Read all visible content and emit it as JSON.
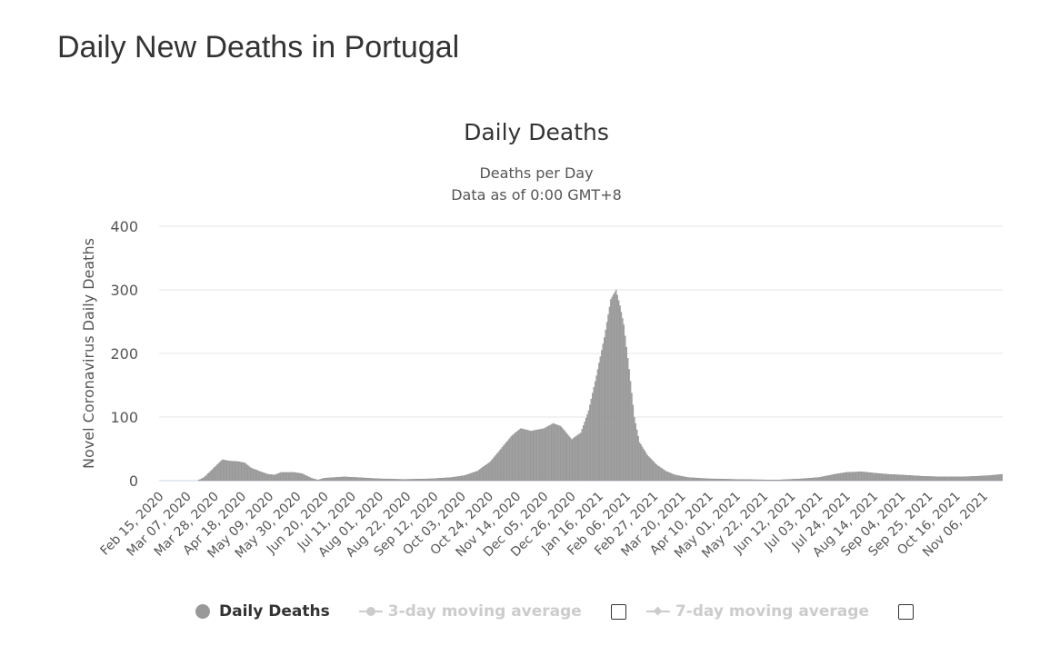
{
  "page_title": "Daily New Deaths in Portugal",
  "legend": {
    "daily_deaths": "Daily Deaths",
    "ma3": "3-day moving average",
    "ma7": "7-day moving average"
  },
  "colors": {
    "bar": "#a6a6a6",
    "bar_stroke": "#7f7f7f",
    "grid": "#e6e6e6",
    "baseline": "#ccd6eb"
  },
  "chart_data": {
    "type": "bar",
    "title": "Daily Deaths",
    "subtitle_lines": [
      "Deaths per Day",
      "Data as of 0:00 GMT+8"
    ],
    "xlabel": "",
    "ylabel": "Novel Coronavirus Daily Deaths",
    "ylim": [
      0,
      400
    ],
    "yticks": [
      0,
      100,
      200,
      300,
      400
    ],
    "grid": true,
    "x_range": [
      "2020-02-15",
      "2021-11-20"
    ],
    "xtick_labels": [
      "Feb 15, 2020",
      "Mar 07, 2020",
      "Mar 28, 2020",
      "Apr 18, 2020",
      "May 09, 2020",
      "May 30, 2020",
      "Jun 20, 2020",
      "Jul 11, 2020",
      "Aug 01, 2020",
      "Aug 22, 2020",
      "Sep 12, 2020",
      "Oct 03, 2020",
      "Oct 24, 2020",
      "Nov 14, 2020",
      "Dec 05, 2020",
      "Dec 26, 2020",
      "Jan 16, 2021",
      "Feb 06, 2021",
      "Feb 27, 2021",
      "Mar 20, 2021",
      "Apr 10, 2021",
      "May 01, 2021",
      "May 22, 2021",
      "Jun 12, 2021",
      "Jul 03, 2021",
      "Jul 24, 2021",
      "Aug 14, 2021",
      "Sep 04, 2021",
      "Sep 25, 2021",
      "Oct 16, 2021",
      "Nov 06, 2021"
    ],
    "series": [
      {
        "name": "Daily Deaths",
        "points": [
          [
            "2020-03-15",
            0
          ],
          [
            "2020-03-20",
            5
          ],
          [
            "2020-03-25",
            15
          ],
          [
            "2020-03-30",
            25
          ],
          [
            "2020-04-03",
            33
          ],
          [
            "2020-04-08",
            31
          ],
          [
            "2020-04-15",
            30
          ],
          [
            "2020-04-20",
            28
          ],
          [
            "2020-04-25",
            20
          ],
          [
            "2020-05-01",
            15
          ],
          [
            "2020-05-08",
            10
          ],
          [
            "2020-05-13",
            9
          ],
          [
            "2020-05-18",
            13
          ],
          [
            "2020-05-28",
            13
          ],
          [
            "2020-06-03",
            11
          ],
          [
            "2020-06-10",
            4
          ],
          [
            "2020-06-15",
            1
          ],
          [
            "2020-06-20",
            4
          ],
          [
            "2020-07-05",
            6
          ],
          [
            "2020-07-15",
            5
          ],
          [
            "2020-08-01",
            3
          ],
          [
            "2020-08-20",
            2
          ],
          [
            "2020-09-10",
            3
          ],
          [
            "2020-09-25",
            5
          ],
          [
            "2020-10-05",
            8
          ],
          [
            "2020-10-15",
            15
          ],
          [
            "2020-10-25",
            30
          ],
          [
            "2020-11-02",
            50
          ],
          [
            "2020-11-10",
            70
          ],
          [
            "2020-11-17",
            82
          ],
          [
            "2020-11-25",
            78
          ],
          [
            "2020-12-05",
            82
          ],
          [
            "2020-12-12",
            90
          ],
          [
            "2020-12-18",
            85
          ],
          [
            "2020-12-26",
            65
          ],
          [
            "2021-01-02",
            75
          ],
          [
            "2021-01-08",
            110
          ],
          [
            "2021-01-14",
            165
          ],
          [
            "2021-01-20",
            225
          ],
          [
            "2021-01-25",
            285
          ],
          [
            "2021-01-29",
            300
          ],
          [
            "2021-02-01",
            275
          ],
          [
            "2021-02-04",
            245
          ],
          [
            "2021-02-08",
            175
          ],
          [
            "2021-02-12",
            100
          ],
          [
            "2021-02-16",
            60
          ],
          [
            "2021-02-22",
            40
          ],
          [
            "2021-03-01",
            25
          ],
          [
            "2021-03-08",
            15
          ],
          [
            "2021-03-15",
            9
          ],
          [
            "2021-03-25",
            5
          ],
          [
            "2021-04-10",
            3
          ],
          [
            "2021-05-01",
            2
          ],
          [
            "2021-06-01",
            1
          ],
          [
            "2021-06-20",
            3
          ],
          [
            "2021-07-03",
            5
          ],
          [
            "2021-07-15",
            10
          ],
          [
            "2021-07-24",
            13
          ],
          [
            "2021-08-05",
            14
          ],
          [
            "2021-08-14",
            12
          ],
          [
            "2021-08-25",
            10
          ],
          [
            "2021-09-04",
            9
          ],
          [
            "2021-09-20",
            7
          ],
          [
            "2021-10-05",
            6
          ],
          [
            "2021-10-20",
            6
          ],
          [
            "2021-11-01",
            7
          ],
          [
            "2021-11-10",
            8
          ],
          [
            "2021-11-20",
            10
          ]
        ]
      }
    ]
  }
}
